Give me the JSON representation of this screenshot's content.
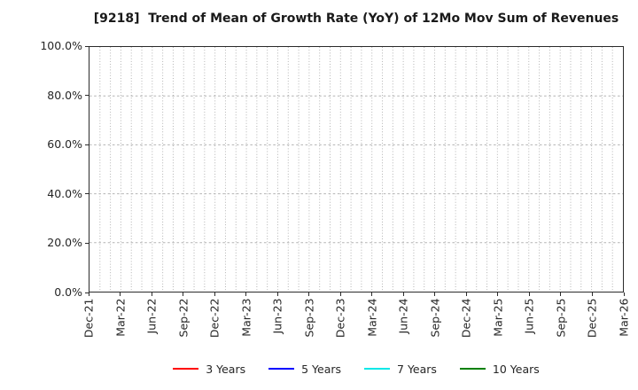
{
  "chart_data": {
    "type": "line",
    "title": "[9218]  Trend of Mean of Growth Rate (YoY) of 12Mo Mov Sum of Revenues",
    "title_color": "#1a1a1a",
    "x_tick_labels": [
      "Dec-21",
      "Mar-22",
      "Jun-22",
      "Sep-22",
      "Dec-22",
      "Mar-23",
      "Jun-23",
      "Sep-23",
      "Dec-23",
      "Mar-24",
      "Jun-24",
      "Sep-24",
      "Dec-24",
      "Mar-25",
      "Jun-25",
      "Sep-25",
      "Dec-25",
      "Mar-26"
    ],
    "x_total_months": 51,
    "x_label_every_months": 3,
    "y_tick_labels": [
      "0.0%",
      "20.0%",
      "40.0%",
      "60.0%",
      "80.0%",
      "100.0%"
    ],
    "y_tick_values": [
      0,
      20,
      40,
      60,
      80,
      100
    ],
    "ylim": [
      0,
      100
    ],
    "grid": {
      "visible": true,
      "style": "dotted",
      "color": "#b3b3b3",
      "vertical_every_months": 1,
      "horizontal_values": [
        20,
        40,
        60,
        80
      ]
    },
    "axis_color": "#2b2b2b",
    "legend_position": "bottom",
    "series": [
      {
        "name": "3 Years",
        "color": "#ff0000",
        "values": []
      },
      {
        "name": "5 Years",
        "color": "#0000ff",
        "values": []
      },
      {
        "name": "7 Years",
        "color": "#00e8e8",
        "values": []
      },
      {
        "name": "10 Years",
        "color": "#008000",
        "values": []
      }
    ],
    "plotted_data_note": "no data lines visible in plot area"
  }
}
